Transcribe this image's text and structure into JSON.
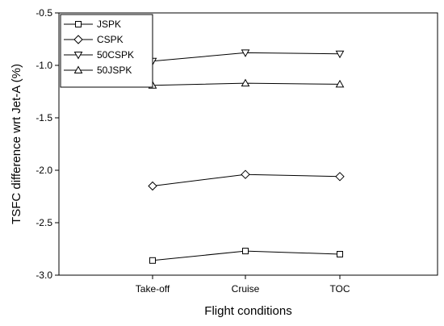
{
  "chart_data": {
    "type": "line",
    "title": "",
    "xlabel": "Flight conditions",
    "ylabel": "TSFC difference wrt Jet-A (%)",
    "categories": [
      "Take-off",
      "Cruise",
      "TOC"
    ],
    "ylim": [
      -3.0,
      -0.5
    ],
    "yticks": [
      -3.0,
      -2.5,
      -2.0,
      -1.5,
      -1.0,
      -0.5
    ],
    "ytick_labels": [
      "-3.0",
      "-2.5",
      "-2.0",
      "-1.5",
      "-1.0",
      "-0.5"
    ],
    "grid": false,
    "legend_position": "top-left",
    "series": [
      {
        "name": "JSPK",
        "marker": "square",
        "values": [
          -2.86,
          -2.77,
          -2.8
        ]
      },
      {
        "name": "CSPK",
        "marker": "diamond",
        "values": [
          -2.15,
          -2.04,
          -2.06
        ]
      },
      {
        "name": "50CSPK",
        "marker": "triangle-down",
        "values": [
          -0.96,
          -0.88,
          -0.89
        ]
      },
      {
        "name": "50JSPK",
        "marker": "triangle-up",
        "values": [
          -1.19,
          -1.17,
          -1.18
        ]
      }
    ]
  }
}
